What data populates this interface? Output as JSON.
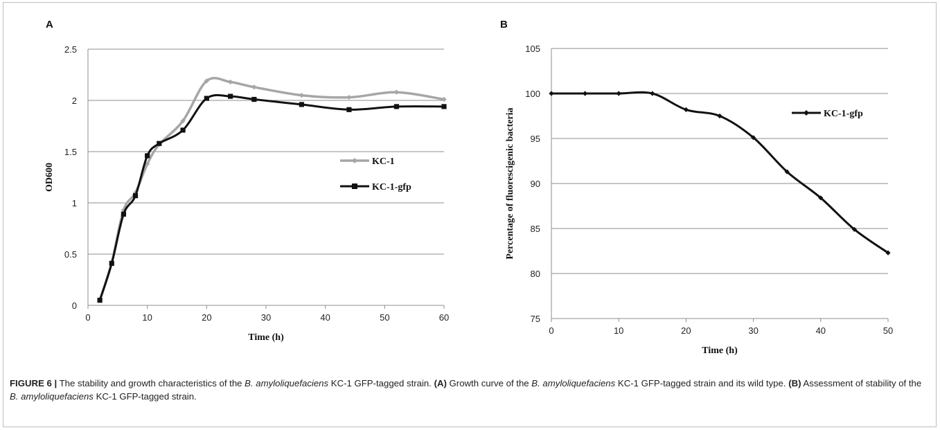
{
  "chart_data": [
    {
      "panel": "A",
      "type": "line",
      "xlabel": "Time (h)",
      "ylabel": "OD600",
      "xlim": [
        0,
        60
      ],
      "ylim": [
        0,
        2.5
      ],
      "xticks": [
        "0",
        "10",
        "20",
        "30",
        "40",
        "50",
        "60"
      ],
      "yticks": [
        "0",
        "0.5",
        "1",
        "1.5",
        "2",
        "2.5"
      ],
      "grid": "horizontal",
      "legend_position": "right-middle",
      "series": [
        {
          "name": "KC-1",
          "color": "#a6a6a6",
          "marker": "diamond",
          "x": [
            2,
            4,
            6,
            8,
            10,
            12,
            16,
            20,
            24,
            28,
            36,
            44,
            52,
            60
          ],
          "y": [
            0.05,
            0.42,
            0.93,
            1.1,
            1.38,
            1.57,
            1.8,
            2.19,
            2.18,
            2.13,
            2.05,
            2.03,
            2.08,
            2.01
          ]
        },
        {
          "name": "KC-1-gfp",
          "color": "#111111",
          "marker": "square",
          "x": [
            2,
            4,
            6,
            8,
            10,
            12,
            16,
            20,
            24,
            28,
            36,
            44,
            52,
            60
          ],
          "y": [
            0.05,
            0.41,
            0.89,
            1.07,
            1.46,
            1.58,
            1.71,
            2.02,
            2.04,
            2.01,
            1.96,
            1.91,
            1.94,
            1.94
          ]
        }
      ]
    },
    {
      "panel": "B",
      "type": "line",
      "xlabel": "Time (h)",
      "ylabel": "Percentage of fluorescigenic bacteria",
      "xlim": [
        0,
        50
      ],
      "ylim": [
        75,
        105
      ],
      "xticks": [
        "0",
        "10",
        "20",
        "30",
        "40",
        "50"
      ],
      "yticks": [
        "75",
        "80",
        "85",
        "90",
        "95",
        "100",
        "105"
      ],
      "grid": "horizontal",
      "legend_position": "top-right",
      "series": [
        {
          "name": "KC-1-gfp",
          "color": "#111111",
          "marker": "diamond",
          "x": [
            0,
            5,
            10,
            15,
            20,
            25,
            30,
            35,
            40,
            45,
            50
          ],
          "y": [
            100,
            100,
            100,
            100,
            98.2,
            97.5,
            95.1,
            91.3,
            88.4,
            84.9,
            82.3
          ]
        }
      ]
    }
  ],
  "caption": {
    "label": "FIGURE 6 |",
    "t1": " The stability and growth characteristics of the ",
    "species1": "B. amyloliquefaciens",
    "t2": " KC-1 GFP-tagged strain. ",
    "a_label": "(A)",
    "t3": " Growth curve of the ",
    "species2": "B. amyloliquefaciens",
    "t4": " KC-1 GFP-tagged strain and its wild type. ",
    "b_label": "(B)",
    "t5": " Assessment of stability of the ",
    "species3": "B. amyloliquefaciens",
    "t6": " KC-1 GFP-tagged strain."
  }
}
